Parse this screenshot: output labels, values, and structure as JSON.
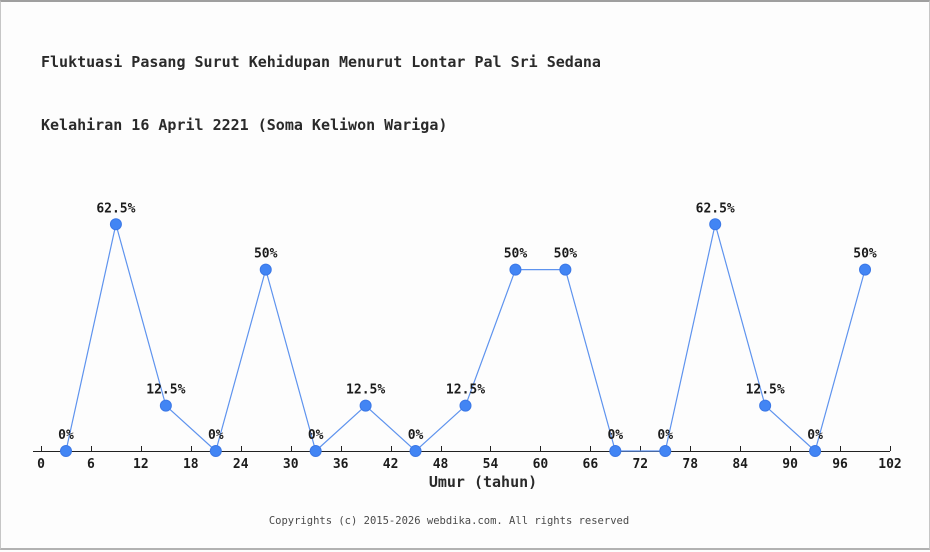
{
  "header": {
    "title_line1": "Fluktuasi Pasang Surut Kehidupan Menurut Lontar Pal Sri Sedana",
    "title_line2": "Kelahiran 16 April 2221 (Soma Keliwon Wariga)"
  },
  "chart_data": {
    "type": "line",
    "title": "Fluktuasi Pasang Surut Kehidupan Menurut Lontar Pal Sri Sedana Kelahiran 16 April 2221 (Soma Keliwon Wariga)",
    "x": [
      3,
      9,
      15,
      21,
      27,
      33,
      39,
      45,
      51,
      57,
      63,
      69,
      75,
      81,
      87,
      93,
      99
    ],
    "values": [
      0,
      62.5,
      12.5,
      0,
      50,
      0,
      12.5,
      0,
      12.5,
      50,
      50,
      0,
      0,
      62.5,
      12.5,
      0,
      50
    ],
    "point_labels": [
      "0%",
      "62.5%",
      "12.5%",
      "0%",
      "50%",
      "0%",
      "12.5%",
      "0%",
      "12.5%",
      "50%",
      "50%",
      "0%",
      "0%",
      "62.5%",
      "12.5%",
      "0%",
      "50%"
    ],
    "x_ticks": [
      0,
      6,
      12,
      18,
      24,
      30,
      36,
      42,
      48,
      54,
      60,
      66,
      72,
      78,
      84,
      90,
      96,
      102
    ],
    "xlabel": "Umur (tahun)",
    "ylabel": "",
    "xlim": [
      0,
      102
    ],
    "ylim": [
      0,
      70
    ],
    "grid": false,
    "legend": "none",
    "line_color": "#5e93ee",
    "marker_color": "#4285f4",
    "marker_edge_color": "#3b78e7",
    "axis_color": "#222222",
    "label_color": "#1c1c1c"
  },
  "footer": {
    "copyright": "Copyrights (c) 2015-2026 webdika.com. All rights reserved"
  }
}
